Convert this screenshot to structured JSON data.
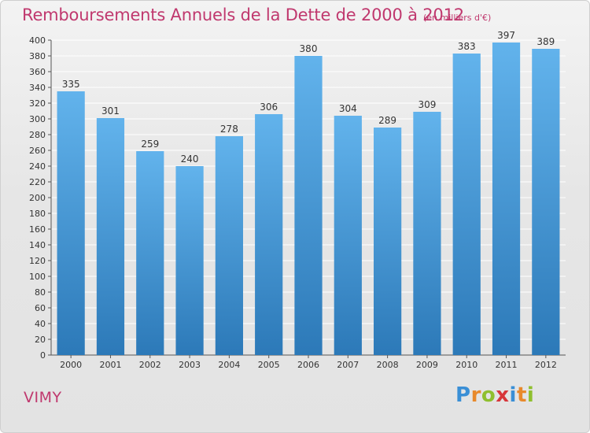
{
  "header": {
    "title": "Remboursements Annuels de la Dette de 2000 à 2012",
    "unit": "(en milliers d'€)"
  },
  "commune": "VIMY",
  "logo": {
    "text": "Proxiti",
    "letters": [
      {
        "char": "P",
        "color": "#3a8fd6"
      },
      {
        "char": "r",
        "color": "#e8892b"
      },
      {
        "char": "o",
        "color": "#8fbf2e"
      },
      {
        "char": "x",
        "color": "#d7363a"
      },
      {
        "char": "i",
        "color": "#3a8fd6"
      },
      {
        "char": "t",
        "color": "#e8892b"
      },
      {
        "char": "i",
        "color": "#8fbf2e"
      }
    ]
  },
  "colors": {
    "bar_top": "#62b3ec",
    "bar_bottom": "#2c79b8",
    "text": "#333333",
    "accent": "#c0386e",
    "grid": "#ffffff"
  },
  "chart_data": {
    "type": "bar",
    "categories": [
      "2000",
      "2001",
      "2002",
      "2003",
      "2004",
      "2005",
      "2006",
      "2007",
      "2008",
      "2009",
      "2010",
      "2011",
      "2012"
    ],
    "values": [
      335,
      301,
      259,
      240,
      278,
      306,
      380,
      304,
      289,
      309,
      383,
      397,
      389
    ],
    "ylim": [
      0,
      400
    ],
    "ytick_step": 20,
    "yticks": [
      "0",
      "20",
      "40",
      "60",
      "80",
      "100",
      "120",
      "140",
      "160",
      "180",
      "200",
      "220",
      "240",
      "260",
      "280",
      "300",
      "320",
      "340",
      "360",
      "380",
      "400"
    ],
    "grid": true,
    "data_labels": true
  }
}
